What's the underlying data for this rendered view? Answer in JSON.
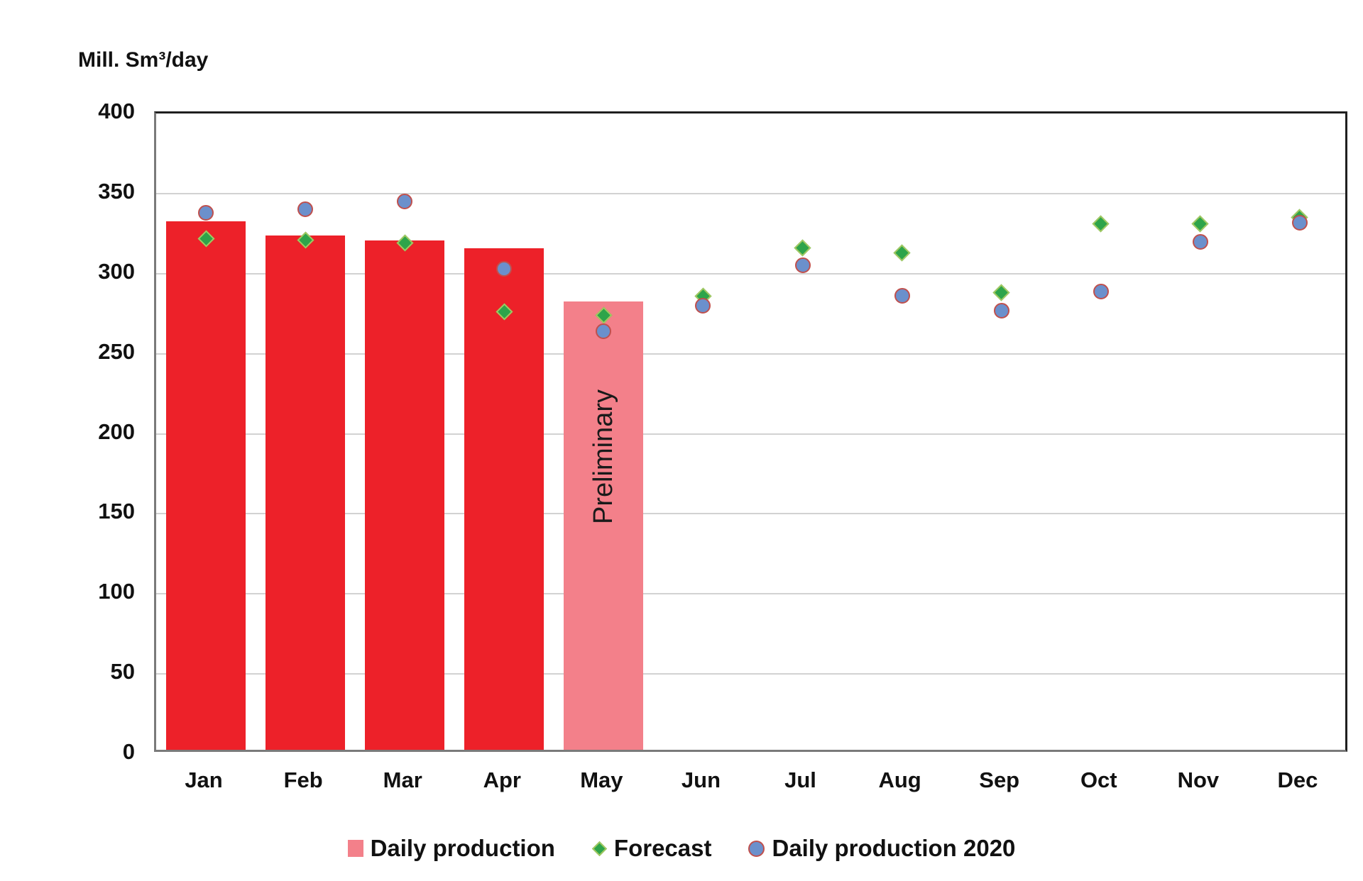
{
  "chart_data": {
    "type": "bar",
    "title": "",
    "y_axis_title": "Mill. Sm³/day",
    "categories": [
      "Jan",
      "Feb",
      "Mar",
      "Apr",
      "May",
      "Jun",
      "Jul",
      "Aug",
      "Sep",
      "Oct",
      "Nov",
      "Dec"
    ],
    "ylim": [
      0,
      400
    ],
    "yticks": [
      0,
      50,
      100,
      150,
      200,
      250,
      300,
      350,
      400
    ],
    "grid": true,
    "legend_position": "bottom",
    "preliminary_label": "Preliminary",
    "preliminary_month_index": 4,
    "series": [
      {
        "name": "Daily production",
        "type": "bar",
        "color": "#ED2129",
        "preliminary_color": "#F3808A",
        "values": [
          330,
          321,
          318,
          313,
          280,
          null,
          null,
          null,
          null,
          null,
          null,
          null
        ]
      },
      {
        "name": "Forecast",
        "type": "scatter",
        "marker": "diamond",
        "fill": "#2EA44A",
        "border": "#A2C860",
        "values": [
          322,
          321,
          319,
          276,
          274,
          286,
          316,
          313,
          288,
          331,
          331,
          335
        ]
      },
      {
        "name": "Daily production 2020",
        "type": "scatter",
        "marker": "circle",
        "fill": "#6B90CC",
        "border": "#C0504D",
        "values": [
          338,
          340,
          345,
          303,
          264,
          280,
          305,
          286,
          277,
          289,
          320,
          332
        ]
      }
    ],
    "colors": {
      "gridline": "#D2D2D2",
      "axis_line": "#7A7A7A",
      "frame": "#1F1F1F",
      "text": "#111111"
    }
  }
}
